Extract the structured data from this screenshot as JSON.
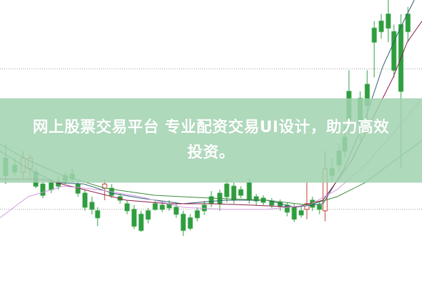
{
  "banner": {
    "line1": "网上股票交易平台 专业配资交易UI设计，助力高效",
    "line2": "投资。"
  },
  "colors": {
    "up": "#c0392b",
    "down": "#2e9e3e",
    "banner": "#a0d2af",
    "ma1": "#2c5e6e",
    "ma2": "#8b1a4a",
    "ma3": "#d39be0",
    "ma4": "#3a8a3a"
  }
}
